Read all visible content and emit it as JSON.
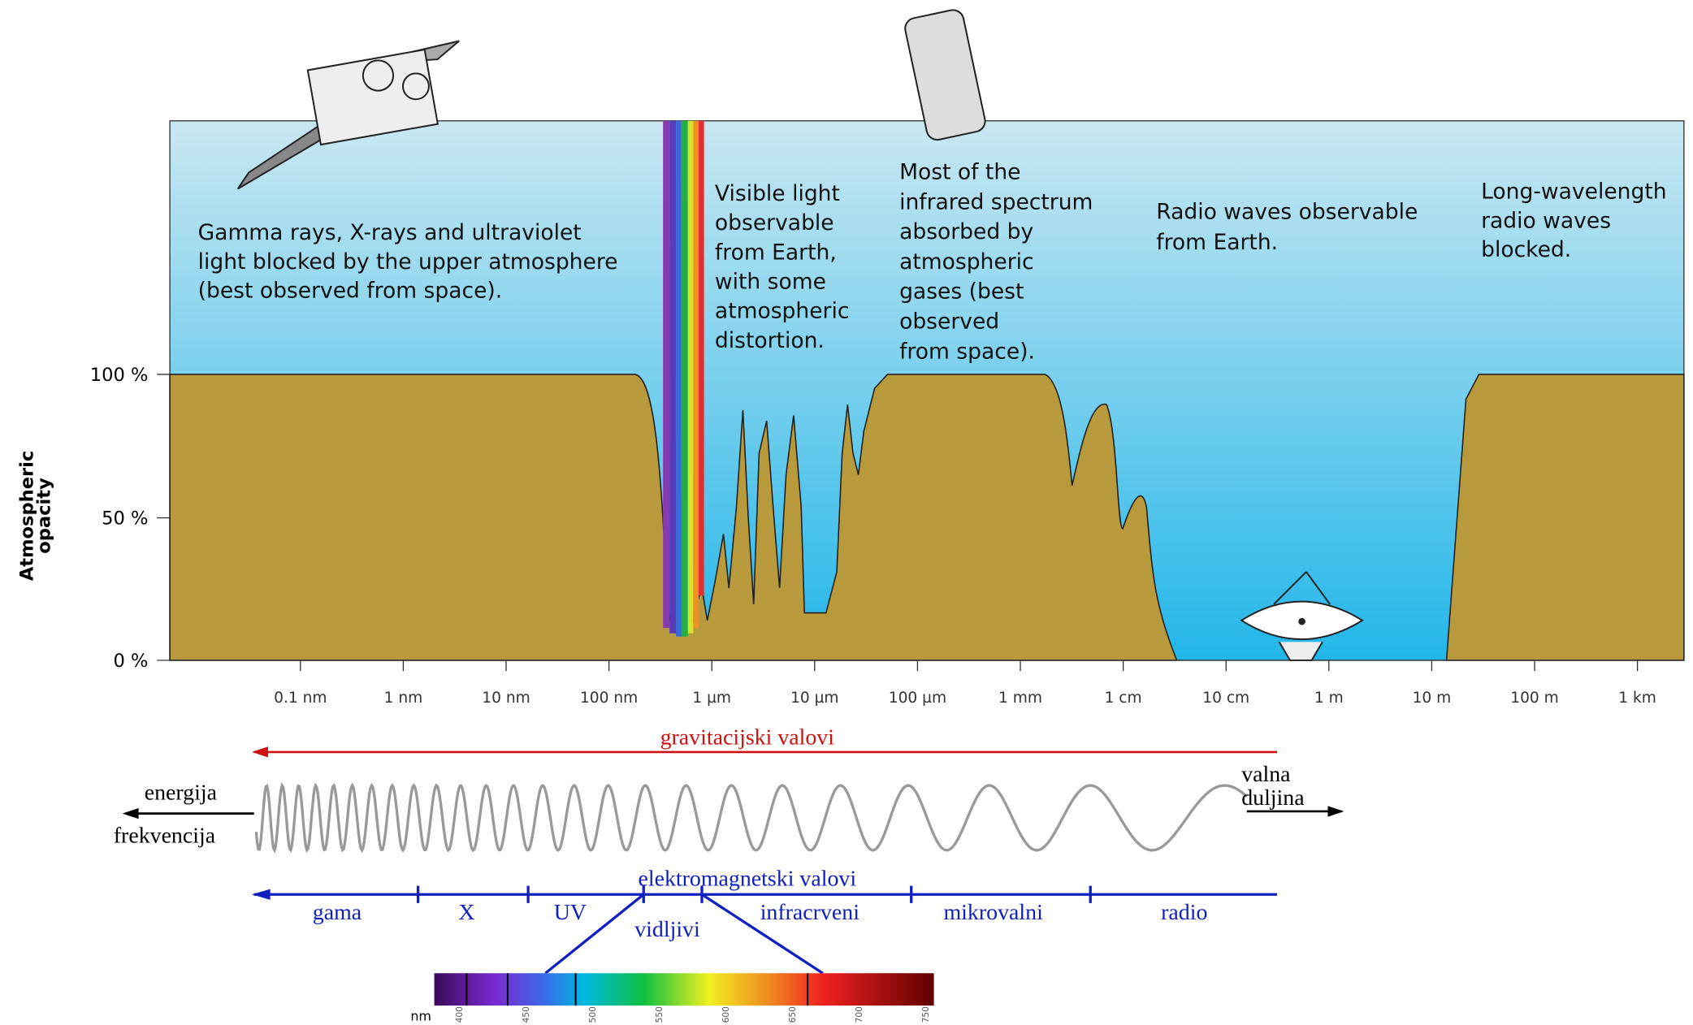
{
  "chart": {
    "y_axis_label": [
      "Atmospheric",
      "opacity"
    ],
    "y_ticks": [
      "100 %",
      "50 %",
      "0 %"
    ],
    "x_ticks": [
      "0.1 nm",
      "1 nm",
      "10 nm",
      "100 nm",
      "1 µm",
      "10 µm",
      "100 µm",
      "1 mm",
      "1 cm",
      "10 cm",
      "1 m",
      "10 m",
      "100 m",
      "1 km"
    ],
    "annotations": [
      {
        "lines": [
          "Gamma rays, X-rays and ultraviolet",
          "light blocked by the upper atmosphere",
          "(best observed from space)."
        ]
      },
      {
        "lines": [
          "Visible light",
          "observable",
          "from Earth,",
          "with some",
          "atmospheric",
          "distortion."
        ]
      },
      {
        "lines": [
          "Most of the",
          "infrared spectrum",
          "absorbed by",
          "atmospheric",
          "gases (best",
          "observed",
          "from space)."
        ]
      },
      {
        "lines": [
          "Radio waves observable",
          "from Earth."
        ]
      },
      {
        "lines": [
          "Long-wavelength",
          "radio waves",
          "blocked."
        ]
      }
    ]
  },
  "waves": {
    "gravitational": "gravitacijski valovi",
    "energy": "energija",
    "frequency": "frekvencija",
    "wavelength": [
      "valna",
      "duljina"
    ],
    "electromagnetic": "elektromagnetski valovi",
    "bands": [
      "gama",
      "X",
      "UV",
      "infracrveni",
      "mikrovalni",
      "radio"
    ],
    "visible": "vidljivi"
  },
  "spectrum": {
    "unit": "nm",
    "ticks": [
      "400",
      "450",
      "500",
      "550",
      "600",
      "650",
      "700",
      "750"
    ]
  }
}
